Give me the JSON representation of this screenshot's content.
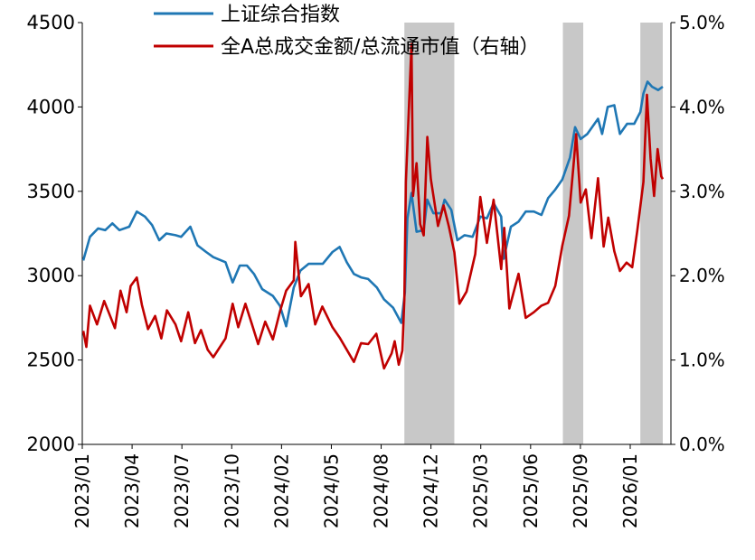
{
  "chart_data": {
    "type": "line",
    "x_ticks": [
      "2023/01",
      "2023/04",
      "2023/07",
      "2023/10",
      "2024/02",
      "2024/05",
      "2024/08",
      "2024/12",
      "2025/03",
      "2025/06",
      "2025/09",
      "2026/01"
    ],
    "y_left": {
      "min": 2000,
      "max": 4500,
      "ticks": [
        "2000",
        "2500",
        "3000",
        "3500",
        "4000",
        "4500"
      ]
    },
    "y_right": {
      "min": 0.0,
      "max": 4.5,
      "ticks": [
        "0.0%",
        "1.0%",
        "2.0%",
        "3.0%",
        "4.0%",
        "5.0%"
      ]
    },
    "shaded_periods": [
      {
        "start": "2024-09-24",
        "end": "2024-12-31"
      },
      {
        "start": "2025-08-01",
        "end": "2025-09-10"
      },
      {
        "start": "2025-12-31",
        "end": "2026-02-13"
      }
    ],
    "series": [
      {
        "name": "上证综合指数",
        "axis": "left",
        "color": "#1f77b4",
        "points": [
          [
            "2023-01-03",
            3090
          ],
          [
            "2023-01-16",
            3230
          ],
          [
            "2023-02-01",
            3280
          ],
          [
            "2023-02-15",
            3270
          ],
          [
            "2023-03-01",
            3310
          ],
          [
            "2023-03-15",
            3270
          ],
          [
            "2023-04-03",
            3290
          ],
          [
            "2023-04-18",
            3380
          ],
          [
            "2023-05-04",
            3350
          ],
          [
            "2023-05-18",
            3300
          ],
          [
            "2023-06-01",
            3210
          ],
          [
            "2023-06-15",
            3250
          ],
          [
            "2023-07-03",
            3240
          ],
          [
            "2023-07-14",
            3230
          ],
          [
            "2023-08-01",
            3290
          ],
          [
            "2023-08-15",
            3180
          ],
          [
            "2023-09-01",
            3140
          ],
          [
            "2023-09-15",
            3110
          ],
          [
            "2023-10-09",
            3080
          ],
          [
            "2023-10-23",
            2960
          ],
          [
            "2023-11-06",
            3060
          ],
          [
            "2023-11-20",
            3060
          ],
          [
            "2023-12-04",
            3010
          ],
          [
            "2023-12-20",
            2920
          ],
          [
            "2024-01-10",
            2880
          ],
          [
            "2024-01-24",
            2820
          ],
          [
            "2024-02-05",
            2700
          ],
          [
            "2024-02-20",
            2930
          ],
          [
            "2024-03-04",
            3030
          ],
          [
            "2024-03-20",
            3070
          ],
          [
            "2024-04-03",
            3070
          ],
          [
            "2024-04-17",
            3070
          ],
          [
            "2024-05-06",
            3140
          ],
          [
            "2024-05-20",
            3170
          ],
          [
            "2024-06-03",
            3080
          ],
          [
            "2024-06-17",
            3010
          ],
          [
            "2024-07-01",
            2990
          ],
          [
            "2024-07-15",
            2980
          ],
          [
            "2024-08-01",
            2930
          ],
          [
            "2024-08-15",
            2860
          ],
          [
            "2024-09-02",
            2810
          ],
          [
            "2024-09-18",
            2720
          ],
          [
            "2024-09-25",
            2900
          ],
          [
            "2024-09-30",
            3340
          ],
          [
            "2024-10-08",
            3490
          ],
          [
            "2024-10-18",
            3260
          ],
          [
            "2024-11-01",
            3270
          ],
          [
            "2024-11-08",
            3450
          ],
          [
            "2024-11-20",
            3370
          ],
          [
            "2024-12-05",
            3370
          ],
          [
            "2024-12-12",
            3450
          ],
          [
            "2024-12-25",
            3390
          ],
          [
            "2025-01-06",
            3210
          ],
          [
            "2025-01-20",
            3240
          ],
          [
            "2025-02-05",
            3230
          ],
          [
            "2025-02-20",
            3350
          ],
          [
            "2025-03-05",
            3340
          ],
          [
            "2025-03-18",
            3430
          ],
          [
            "2025-04-02",
            3350
          ],
          [
            "2025-04-07",
            3100
          ],
          [
            "2025-04-21",
            3290
          ],
          [
            "2025-05-06",
            3320
          ],
          [
            "2025-05-20",
            3380
          ],
          [
            "2025-06-05",
            3380
          ],
          [
            "2025-06-20",
            3360
          ],
          [
            "2025-07-03",
            3460
          ],
          [
            "2025-07-17",
            3510
          ],
          [
            "2025-07-31",
            3570
          ],
          [
            "2025-08-15",
            3700
          ],
          [
            "2025-08-25",
            3880
          ],
          [
            "2025-09-05",
            3810
          ],
          [
            "2025-09-18",
            3840
          ],
          [
            "2025-10-09",
            3930
          ],
          [
            "2025-10-17",
            3840
          ],
          [
            "2025-10-28",
            4000
          ],
          [
            "2025-11-10",
            4010
          ],
          [
            "2025-11-21",
            3840
          ],
          [
            "2025-12-05",
            3900
          ],
          [
            "2025-12-19",
            3900
          ],
          [
            "2025-12-31",
            3970
          ],
          [
            "2026-01-06",
            4080
          ],
          [
            "2026-01-14",
            4150
          ],
          [
            "2026-01-23",
            4120
          ],
          [
            "2026-02-04",
            4100
          ],
          [
            "2026-02-13",
            4120
          ]
        ]
      },
      {
        "name": "全A总成交金额/总流通市值（右轴）",
        "axis": "right",
        "color": "#c00000",
        "points": [
          [
            "2023-01-03",
            1.21
          ],
          [
            "2023-01-09",
            1.04
          ],
          [
            "2023-01-16",
            1.48
          ],
          [
            "2023-01-30",
            1.28
          ],
          [
            "2023-02-13",
            1.53
          ],
          [
            "2023-02-24",
            1.38
          ],
          [
            "2023-03-06",
            1.24
          ],
          [
            "2023-03-17",
            1.64
          ],
          [
            "2023-03-29",
            1.41
          ],
          [
            "2023-04-06",
            1.69
          ],
          [
            "2023-04-18",
            1.78
          ],
          [
            "2023-04-28",
            1.49
          ],
          [
            "2023-05-10",
            1.23
          ],
          [
            "2023-05-24",
            1.37
          ],
          [
            "2023-06-05",
            1.13
          ],
          [
            "2023-06-16",
            1.43
          ],
          [
            "2023-07-03",
            1.28
          ],
          [
            "2023-07-14",
            1.1
          ],
          [
            "2023-07-28",
            1.41
          ],
          [
            "2023-08-10",
            1.08
          ],
          [
            "2023-08-22",
            1.22
          ],
          [
            "2023-09-04",
            1.01
          ],
          [
            "2023-09-15",
            0.93
          ],
          [
            "2023-10-09",
            1.13
          ],
          [
            "2023-10-23",
            1.5
          ],
          [
            "2023-11-03",
            1.25
          ],
          [
            "2023-11-17",
            1.5
          ],
          [
            "2023-11-30",
            1.28
          ],
          [
            "2023-12-12",
            1.07
          ],
          [
            "2023-12-26",
            1.31
          ],
          [
            "2024-01-10",
            1.12
          ],
          [
            "2024-01-24",
            1.42
          ],
          [
            "2024-02-05",
            1.64
          ],
          [
            "2024-02-20",
            1.75
          ],
          [
            "2024-02-23",
            2.16
          ],
          [
            "2024-03-05",
            1.58
          ],
          [
            "2024-03-20",
            1.71
          ],
          [
            "2024-04-02",
            1.28
          ],
          [
            "2024-04-16",
            1.47
          ],
          [
            "2024-05-06",
            1.25
          ],
          [
            "2024-05-20",
            1.14
          ],
          [
            "2024-06-03",
            1.01
          ],
          [
            "2024-06-17",
            0.88
          ],
          [
            "2024-07-01",
            1.08
          ],
          [
            "2024-07-15",
            1.07
          ],
          [
            "2024-07-31",
            1.18
          ],
          [
            "2024-08-15",
            0.81
          ],
          [
            "2024-08-30",
            0.97
          ],
          [
            "2024-09-05",
            1.1
          ],
          [
            "2024-09-13",
            0.85
          ],
          [
            "2024-09-20",
            1.0
          ],
          [
            "2024-09-24",
            1.55
          ],
          [
            "2024-09-27",
            2.8
          ],
          [
            "2024-10-08",
            4.27
          ],
          [
            "2024-10-11",
            2.65
          ],
          [
            "2024-10-18",
            3.0
          ],
          [
            "2024-10-25",
            2.35
          ],
          [
            "2024-11-01",
            2.23
          ],
          [
            "2024-11-08",
            3.28
          ],
          [
            "2024-11-15",
            2.83
          ],
          [
            "2024-11-22",
            2.58
          ],
          [
            "2024-11-29",
            2.33
          ],
          [
            "2024-12-10",
            2.55
          ],
          [
            "2024-12-20",
            2.33
          ],
          [
            "2024-12-31",
            2.05
          ],
          [
            "2025-01-10",
            1.5
          ],
          [
            "2025-01-24",
            1.63
          ],
          [
            "2025-02-10",
            2.03
          ],
          [
            "2025-02-20",
            2.64
          ],
          [
            "2025-03-05",
            2.15
          ],
          [
            "2025-03-18",
            2.61
          ],
          [
            "2025-04-02",
            1.87
          ],
          [
            "2025-04-08",
            2.31
          ],
          [
            "2025-04-18",
            1.45
          ],
          [
            "2025-05-06",
            1.82
          ],
          [
            "2025-05-20",
            1.35
          ],
          [
            "2025-06-05",
            1.41
          ],
          [
            "2025-06-20",
            1.48
          ],
          [
            "2025-07-03",
            1.51
          ],
          [
            "2025-07-17",
            1.69
          ],
          [
            "2025-07-31",
            2.12
          ],
          [
            "2025-08-13",
            2.44
          ],
          [
            "2025-08-22",
            2.98
          ],
          [
            "2025-08-27",
            3.31
          ],
          [
            "2025-09-05",
            2.58
          ],
          [
            "2025-09-15",
            2.72
          ],
          [
            "2025-09-26",
            2.2
          ],
          [
            "2025-10-09",
            2.84
          ],
          [
            "2025-10-20",
            2.11
          ],
          [
            "2025-10-29",
            2.42
          ],
          [
            "2025-11-10",
            2.06
          ],
          [
            "2025-11-21",
            1.85
          ],
          [
            "2025-12-04",
            1.94
          ],
          [
            "2025-12-15",
            1.89
          ],
          [
            "2025-12-25",
            2.28
          ],
          [
            "2026-01-06",
            2.8
          ],
          [
            "2026-01-13",
            3.73
          ],
          [
            "2026-01-20",
            3.05
          ],
          [
            "2026-01-27",
            2.65
          ],
          [
            "2026-02-03",
            3.15
          ],
          [
            "2026-02-10",
            2.86
          ],
          [
            "2026-02-13",
            2.83
          ]
        ]
      }
    ]
  }
}
